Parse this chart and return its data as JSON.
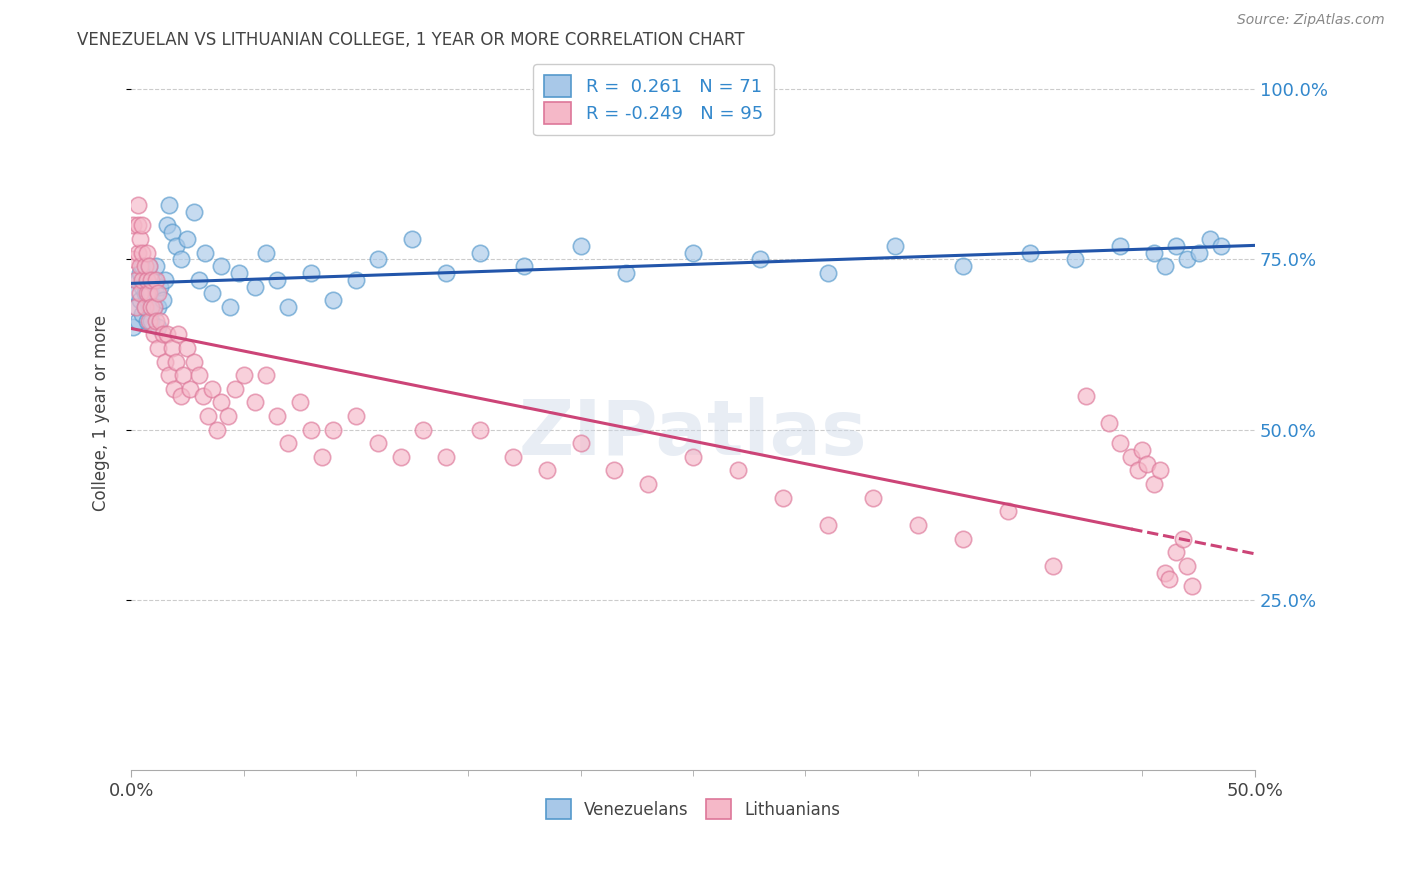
{
  "title": "VENEZUELAN VS LITHUANIAN COLLEGE, 1 YEAR OR MORE CORRELATION CHART",
  "source": "Source: ZipAtlas.com",
  "ylabel": "College, 1 year or more",
  "xlim": [
    0.0,
    0.5
  ],
  "ylim": [
    0.0,
    1.05
  ],
  "xticks": [
    0.0,
    0.5
  ],
  "yticks": [
    0.25,
    0.5,
    0.75,
    1.0
  ],
  "ytick_labels": [
    "25.0%",
    "50.0%",
    "75.0%",
    "100.0%"
  ],
  "xtick_labels": [
    "0.0%",
    "50.0%"
  ],
  "blue_R": 0.261,
  "blue_N": 71,
  "pink_R": -0.249,
  "pink_N": 95,
  "blue_color": "#a8c8e8",
  "pink_color": "#f5b8c8",
  "blue_edge_color": "#5599cc",
  "pink_edge_color": "#dd7799",
  "blue_line_color": "#2255aa",
  "pink_line_color": "#cc4477",
  "legend_blue_label": "Venezuelans",
  "legend_pink_label": "Lithuanians",
  "watermark": "ZIPatlas",
  "background_color": "#ffffff",
  "grid_color": "#cccccc",
  "title_color": "#444444",
  "axis_label_color": "#444444",
  "right_tick_color": "#3388cc",
  "blue_x": [
    0.001,
    0.002,
    0.002,
    0.003,
    0.003,
    0.004,
    0.004,
    0.005,
    0.005,
    0.005,
    0.006,
    0.006,
    0.007,
    0.007,
    0.007,
    0.008,
    0.008,
    0.008,
    0.009,
    0.009,
    0.01,
    0.01,
    0.011,
    0.011,
    0.012,
    0.012,
    0.013,
    0.014,
    0.015,
    0.016,
    0.017,
    0.018,
    0.02,
    0.022,
    0.025,
    0.028,
    0.03,
    0.033,
    0.036,
    0.04,
    0.044,
    0.048,
    0.055,
    0.06,
    0.065,
    0.07,
    0.08,
    0.09,
    0.1,
    0.11,
    0.125,
    0.14,
    0.155,
    0.175,
    0.2,
    0.22,
    0.25,
    0.28,
    0.31,
    0.34,
    0.37,
    0.4,
    0.42,
    0.44,
    0.455,
    0.46,
    0.465,
    0.47,
    0.475,
    0.48,
    0.485
  ],
  "blue_y": [
    0.65,
    0.7,
    0.68,
    0.72,
    0.66,
    0.69,
    0.73,
    0.67,
    0.71,
    0.74,
    0.7,
    0.68,
    0.72,
    0.66,
    0.69,
    0.71,
    0.74,
    0.68,
    0.7,
    0.66,
    0.72,
    0.68,
    0.7,
    0.74,
    0.68,
    0.65,
    0.71,
    0.69,
    0.72,
    0.8,
    0.83,
    0.79,
    0.77,
    0.75,
    0.78,
    0.82,
    0.72,
    0.76,
    0.7,
    0.74,
    0.68,
    0.73,
    0.71,
    0.76,
    0.72,
    0.68,
    0.73,
    0.69,
    0.72,
    0.75,
    0.78,
    0.73,
    0.76,
    0.74,
    0.77,
    0.73,
    0.76,
    0.75,
    0.73,
    0.77,
    0.74,
    0.76,
    0.75,
    0.77,
    0.76,
    0.74,
    0.77,
    0.75,
    0.76,
    0.78,
    0.77
  ],
  "pink_x": [
    0.001,
    0.001,
    0.002,
    0.002,
    0.003,
    0.003,
    0.003,
    0.004,
    0.004,
    0.004,
    0.005,
    0.005,
    0.005,
    0.006,
    0.006,
    0.007,
    0.007,
    0.007,
    0.008,
    0.008,
    0.008,
    0.009,
    0.009,
    0.01,
    0.01,
    0.011,
    0.011,
    0.012,
    0.012,
    0.013,
    0.014,
    0.015,
    0.016,
    0.017,
    0.018,
    0.019,
    0.02,
    0.021,
    0.022,
    0.023,
    0.025,
    0.026,
    0.028,
    0.03,
    0.032,
    0.034,
    0.036,
    0.038,
    0.04,
    0.043,
    0.046,
    0.05,
    0.055,
    0.06,
    0.065,
    0.07,
    0.075,
    0.08,
    0.085,
    0.09,
    0.1,
    0.11,
    0.12,
    0.13,
    0.14,
    0.155,
    0.17,
    0.185,
    0.2,
    0.215,
    0.23,
    0.25,
    0.27,
    0.29,
    0.31,
    0.33,
    0.35,
    0.37,
    0.39,
    0.41,
    0.425,
    0.435,
    0.44,
    0.445,
    0.448,
    0.45,
    0.452,
    0.455,
    0.458,
    0.46,
    0.462,
    0.465,
    0.468,
    0.47,
    0.472
  ],
  "pink_y": [
    0.75,
    0.8,
    0.68,
    0.72,
    0.83,
    0.76,
    0.8,
    0.7,
    0.74,
    0.78,
    0.72,
    0.76,
    0.8,
    0.68,
    0.74,
    0.7,
    0.76,
    0.72,
    0.66,
    0.7,
    0.74,
    0.68,
    0.72,
    0.64,
    0.68,
    0.72,
    0.66,
    0.7,
    0.62,
    0.66,
    0.64,
    0.6,
    0.64,
    0.58,
    0.62,
    0.56,
    0.6,
    0.64,
    0.55,
    0.58,
    0.62,
    0.56,
    0.6,
    0.58,
    0.55,
    0.52,
    0.56,
    0.5,
    0.54,
    0.52,
    0.56,
    0.58,
    0.54,
    0.58,
    0.52,
    0.48,
    0.54,
    0.5,
    0.46,
    0.5,
    0.52,
    0.48,
    0.46,
    0.5,
    0.46,
    0.5,
    0.46,
    0.44,
    0.48,
    0.44,
    0.42,
    0.46,
    0.44,
    0.4,
    0.36,
    0.4,
    0.36,
    0.34,
    0.38,
    0.3,
    0.55,
    0.51,
    0.48,
    0.46,
    0.44,
    0.47,
    0.45,
    0.42,
    0.44,
    0.29,
    0.28,
    0.32,
    0.34,
    0.3,
    0.27
  ]
}
